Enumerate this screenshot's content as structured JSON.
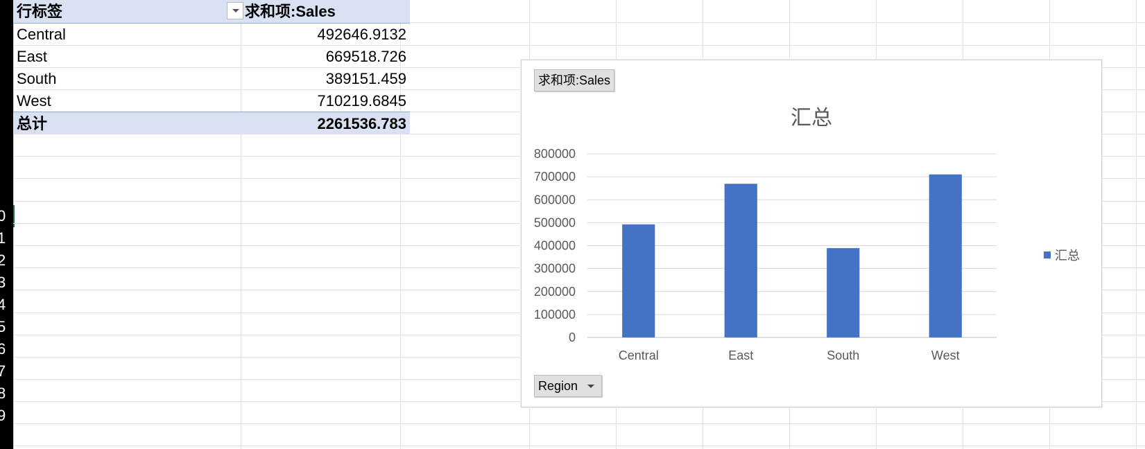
{
  "row_header": {
    "numbers": [
      "0",
      "1",
      "2",
      "3",
      "4",
      "5",
      "6",
      "7",
      "8",
      "9"
    ]
  },
  "pivot": {
    "header": {
      "row_label": "行标签",
      "value_label": "求和项:Sales"
    },
    "rows": [
      {
        "label": "Central",
        "value": "492646.9132"
      },
      {
        "label": "East",
        "value": "669518.726"
      },
      {
        "label": "South",
        "value": "389151.459"
      },
      {
        "label": "West",
        "value": "710219.6845"
      }
    ],
    "total": {
      "label": "总计",
      "value": "2261536.783"
    }
  },
  "chart": {
    "value_field_button": "求和项:Sales",
    "axis_field_button": "Region"
  },
  "chart_data": {
    "type": "bar",
    "title": "汇总",
    "categories": [
      "Central",
      "East",
      "South",
      "West"
    ],
    "series": [
      {
        "name": "汇总",
        "values": [
          492646.9132,
          669518.726,
          389151.459,
          710219.6845
        ],
        "color": "#4472c4"
      }
    ],
    "ylim": [
      0,
      800000
    ],
    "yticks": [
      "0",
      "100000",
      "200000",
      "300000",
      "400000",
      "500000",
      "600000",
      "700000",
      "800000"
    ],
    "grid": true,
    "legend_position": "right",
    "xlabel": "",
    "ylabel": ""
  },
  "colors": {
    "pivot_header_fill": "#d9e1f2",
    "bar": "#4472c4"
  }
}
